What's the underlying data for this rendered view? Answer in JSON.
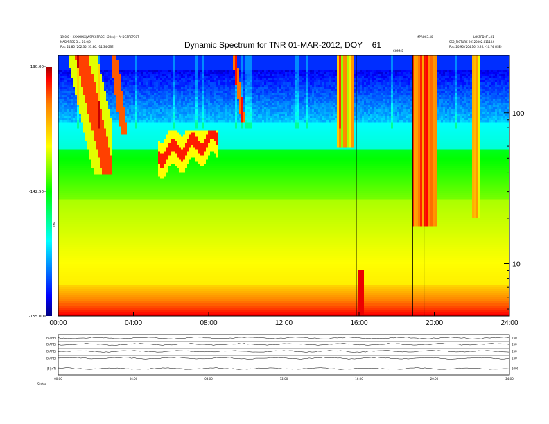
{
  "header": {
    "left_line1": "19.0.0 • XXXXXXX(WSPECPROC) (20xx) • A•DGPRCPECT",
    "left_line2": "NASPRRES 3 = 50.0/0",
    "left_line3": "Pos: 21.85 (202.35, 51.86, -11.34 GSE)",
    "right_line1a": "MPROC3.40",
    "right_line1b": "LOSPFDMF=01",
    "right_line2": "SS2_PICTURE 20120302.011104",
    "right_line3": "Pos: 20.90 (204.16, 5.26, -10.74 GSE)",
    "marker_label": "CONMB"
  },
  "chart_data": {
    "type": "heatmap",
    "title": "Dynamic Spectrum for TNR 01-MAR-2012, DOY = 61",
    "x_ticks": [
      "00:00",
      "04:00",
      "08:00",
      "12:00",
      "16:00",
      "20:00",
      "24:00"
    ],
    "x_range_hours": [
      0,
      24
    ],
    "y_scale": "log",
    "y_ticks": [
      "100",
      "10"
    ],
    "y_tick_values": [
      100,
      10
    ],
    "y_range": [
      4.5,
      240
    ],
    "colorbar": {
      "ticks": [
        "-130.00",
        "-142.50",
        "-155.00"
      ],
      "range": [
        -155,
        -130
      ],
      "label": "TNR",
      "colors": [
        "#0000a0",
        "#0000ff",
        "#00ffff",
        "#00ff00",
        "#ffff00",
        "#ff8000",
        "#ff0000",
        "#800000"
      ]
    },
    "vertical_lines_hours": [
      15.85,
      18.85,
      19.45
    ],
    "panels": [
      {
        "label": "B(ARE)",
        "right": "150"
      },
      {
        "label": "B(ARE)",
        "right": "150"
      },
      {
        "label": "B(ARE)",
        "right": "150"
      },
      {
        "label": "B(ARE)",
        "right": "150"
      },
      {
        "label": "|B|(nT)",
        "right": "1000"
      }
    ],
    "panel_x_ticks": [
      "00:00",
      "04:00",
      "08:00",
      "12:00",
      "16:00",
      "20:00",
      "24:00"
    ],
    "footer_label": "Status"
  }
}
